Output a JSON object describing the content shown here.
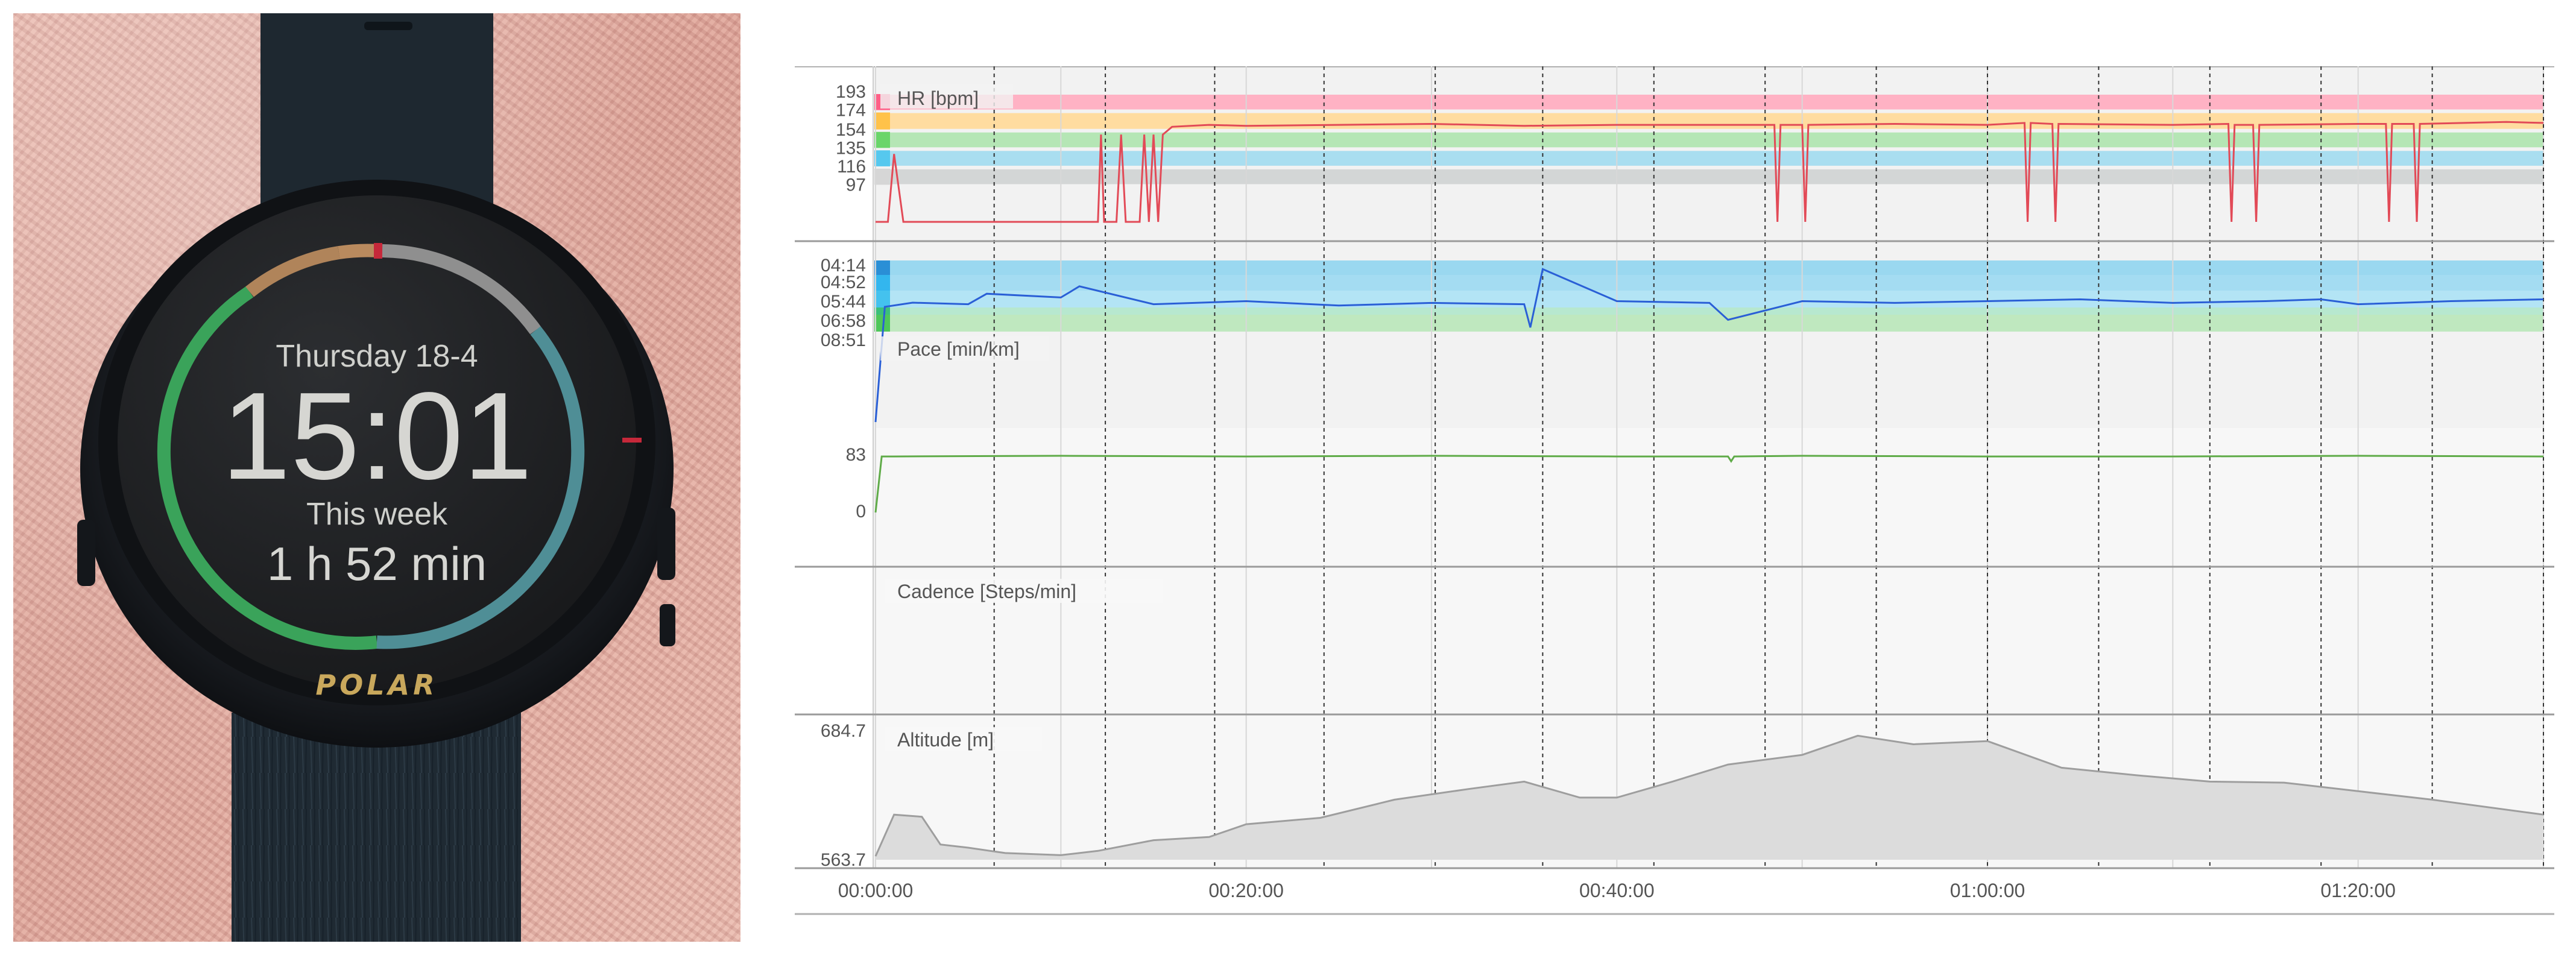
{
  "watch": {
    "date": "Thursday 18-4",
    "time": "15:01",
    "summary_label": "This week",
    "summary_value": "1 h 52 min",
    "brand": "POLAR",
    "colors": {
      "ring_green": "#3aa35a",
      "ring_teal": "#4f8e96",
      "ring_gray": "#8f8f8f",
      "ring_orange": "#b0845a",
      "marker_red": "#c6283a",
      "brand_gold": "#c9a85c"
    }
  },
  "chart_data": [
    {
      "type": "line",
      "title": "HR [bpm]",
      "x": [
        "00:00:00",
        "00:00:40",
        "00:01:00",
        "00:01:30",
        "00:12:00",
        "00:12:10",
        "00:12:20",
        "00:13:00",
        "00:13:15",
        "00:13:30",
        "00:14:15",
        "00:14:30",
        "00:14:45",
        "00:15:00",
        "00:15:15",
        "00:15:30",
        "00:16:00",
        "00:18:00",
        "00:20:00",
        "00:25:00",
        "00:30:00",
        "00:35:00",
        "00:40:00",
        "00:45:00",
        "00:48:30",
        "00:48:40",
        "00:48:50",
        "00:50:00",
        "00:50:10",
        "00:50:20",
        "00:55:00",
        "01:00:00",
        "01:02:00",
        "01:02:10",
        "01:02:20",
        "01:03:30",
        "01:03:40",
        "01:03:50",
        "01:10:00",
        "01:13:00",
        "01:13:10",
        "01:13:20",
        "01:14:20",
        "01:14:30",
        "01:14:40",
        "01:20:00",
        "01:21:30",
        "01:21:40",
        "01:21:50",
        "01:23:00",
        "01:23:10",
        "01:23:20",
        "01:28:00",
        "01:30:00"
      ],
      "y": [
        60,
        60,
        130,
        60,
        60,
        150,
        60,
        60,
        150,
        60,
        60,
        150,
        60,
        150,
        60,
        150,
        158,
        160,
        159,
        160,
        161,
        159,
        160,
        160,
        160,
        60,
        160,
        160,
        60,
        160,
        161,
        160,
        162,
        60,
        162,
        161,
        60,
        161,
        160,
        161,
        60,
        160,
        160,
        60,
        160,
        161,
        161,
        60,
        161,
        161,
        60,
        161,
        163,
        162
      ],
      "zones": [
        97,
        116,
        135,
        154,
        174,
        193
      ],
      "zone_colors": [
        "#d6d6d6",
        "#56c8ee",
        "#6ad56a",
        "#ffc24a",
        "#ff5f87"
      ],
      "yticks": [
        "193",
        "174",
        "154",
        "135",
        "116",
        "97"
      ],
      "color": "#e24a57"
    },
    {
      "type": "line",
      "title": "Pace [min/km]",
      "x": [
        "00:00:00",
        "00:00:30",
        "00:02:00",
        "00:05:00",
        "00:06:00",
        "00:10:00",
        "00:11:00",
        "00:15:00",
        "00:20:00",
        "00:25:00",
        "00:30:00",
        "00:35:00",
        "00:35:20",
        "00:36:00",
        "00:40:00",
        "00:45:00",
        "00:46:00",
        "00:50:00",
        "00:55:00",
        "01:00:00",
        "01:05:00",
        "01:10:00",
        "01:15:00",
        "01:18:00",
        "01:20:00",
        "01:25:00",
        "01:30:00"
      ],
      "y": [
        "15:00",
        "06:00",
        "05:44",
        "05:50",
        "05:20",
        "05:30",
        "05:00",
        "05:50",
        "05:40",
        "05:55",
        "05:45",
        "05:50",
        "07:30",
        "04:20",
        "05:40",
        "05:45",
        "06:50",
        "05:40",
        "05:45",
        "05:40",
        "05:35",
        "05:45",
        "05:40",
        "05:35",
        "05:50",
        "05:40",
        "05:35"
      ],
      "zone_colors": [
        "#6ad56a",
        "#56c8ee",
        "#56c8ee",
        "#56c8ee"
      ],
      "yticks": [
        "04:14",
        "04:52",
        "05:44",
        "06:58",
        "08:51"
      ],
      "color": "#2a5fd6"
    },
    {
      "type": "line",
      "title": "Cadence [Steps/min]",
      "x": [
        "00:00:00",
        "00:00:20",
        "00:01:00",
        "00:10:00",
        "00:20:00",
        "00:30:00",
        "00:40:00",
        "00:46:00",
        "00:46:10",
        "00:46:20",
        "00:50:00",
        "01:00:00",
        "01:10:00",
        "01:20:00",
        "01:30:00"
      ],
      "y": [
        0,
        82,
        82,
        83,
        82,
        83,
        82,
        82,
        75,
        82,
        83,
        82,
        82,
        83,
        82
      ],
      "yticks": [
        "83",
        "0"
      ],
      "color": "#5fab48"
    },
    {
      "type": "area",
      "title": "Altitude [m]",
      "x": [
        "00:00:00",
        "00:01:00",
        "00:02:30",
        "00:03:30",
        "00:05:00",
        "00:07:00",
        "00:10:00",
        "00:12:00",
        "00:15:00",
        "00:18:00",
        "00:20:00",
        "00:24:00",
        "00:28:00",
        "00:32:00",
        "00:35:00",
        "00:38:00",
        "00:40:00",
        "00:43:00",
        "00:46:00",
        "00:50:00",
        "00:53:00",
        "00:56:00",
        "01:00:00",
        "01:04:00",
        "01:08:00",
        "01:12:00",
        "01:16:00",
        "01:20:00",
        "01:24:00",
        "01:30:00"
      ],
      "y": [
        567,
        606,
        604,
        578,
        575,
        570,
        568,
        572,
        582,
        585,
        597,
        603,
        620,
        630,
        637,
        622,
        622,
        637,
        653,
        662,
        680,
        672,
        675,
        650,
        643,
        637,
        636,
        628,
        620,
        606
      ],
      "ylim": [
        563.7,
        684.7
      ],
      "yticks": [
        "684.7",
        "563.7"
      ],
      "color": "#9e9e9e"
    }
  ],
  "x_axis": {
    "range": [
      "00:00:00",
      "01:30:00"
    ],
    "ticks": [
      "00:00:00",
      "00:20:00",
      "00:40:00",
      "01:00:00",
      "01:20:00"
    ]
  }
}
